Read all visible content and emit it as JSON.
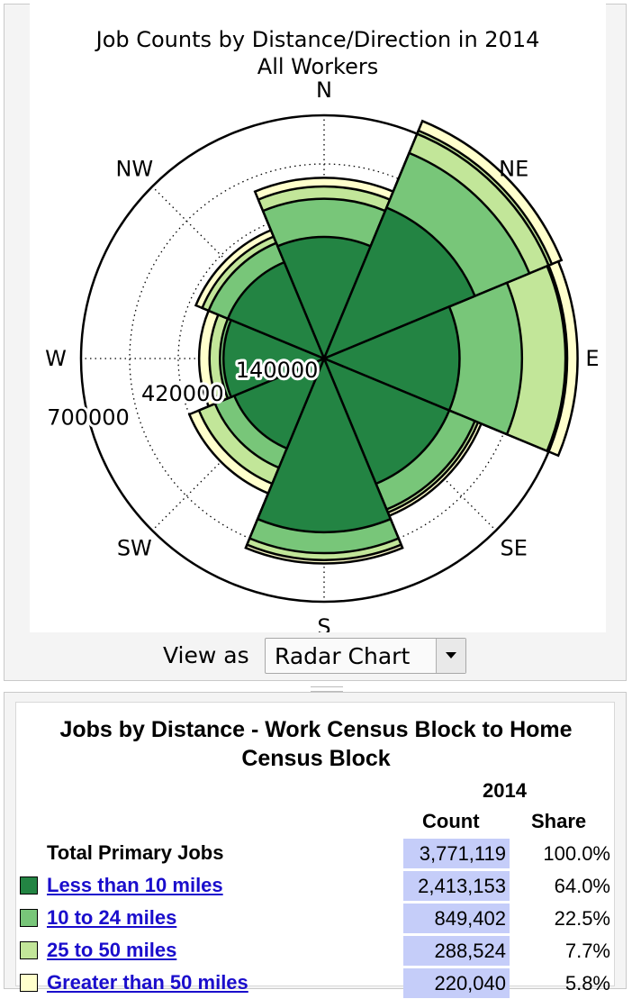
{
  "chart_data": {
    "type": "radar",
    "title": "Job Counts by Distance/Direction in 2014",
    "subtitle": "All Workers",
    "directions": [
      "N",
      "NE",
      "E",
      "SE",
      "S",
      "SW",
      "W",
      "NW"
    ],
    "radial_ticks": [
      140000,
      420000,
      700000
    ],
    "radial_max": 700000,
    "grid": true,
    "series": [
      {
        "name": "Less than 10 miles",
        "color": "#238443",
        "values": [
          350000,
          470000,
          390000,
          390000,
          500000,
          280000,
          290000,
          300000
        ]
      },
      {
        "name": "10 to 24 miles",
        "color": "#78c679",
        "values": [
          460000,
          640000,
          570000,
          470000,
          560000,
          340000,
          300000,
          360000
        ]
      },
      {
        "name": "25 to 50 miles",
        "color": "#c2e699",
        "values": [
          495000,
          710000,
          695000,
          480000,
          580000,
          390000,
          330000,
          380000
        ]
      },
      {
        "name": "Greater than 50 miles",
        "color": "#ffffcc",
        "values": [
          520000,
          740000,
          730000,
          490000,
          590000,
          420000,
          360000,
          400000
        ]
      }
    ]
  },
  "view": {
    "label": "View as",
    "selected": "Radar Chart"
  },
  "table": {
    "title": "Jobs by Distance - Work Census Block to Home Census Block",
    "year": "2014",
    "count_header": "Count",
    "share_header": "Share",
    "rows": [
      {
        "label": "Total Primary Jobs",
        "count": "3,771,119",
        "share": "100.0%"
      },
      {
        "label": "Less than 10 miles",
        "count": "2,413,153",
        "share": "64.0%",
        "color": "#238443"
      },
      {
        "label": "10 to 24 miles",
        "count": "849,402",
        "share": "22.5%",
        "color": "#78c679"
      },
      {
        "label": "25 to 50 miles",
        "count": "288,524",
        "share": "7.7%",
        "color": "#c2e699"
      },
      {
        "label": "Greater than 50 miles",
        "count": "220,040",
        "share": "5.8%",
        "color": "#ffffcc"
      }
    ]
  }
}
